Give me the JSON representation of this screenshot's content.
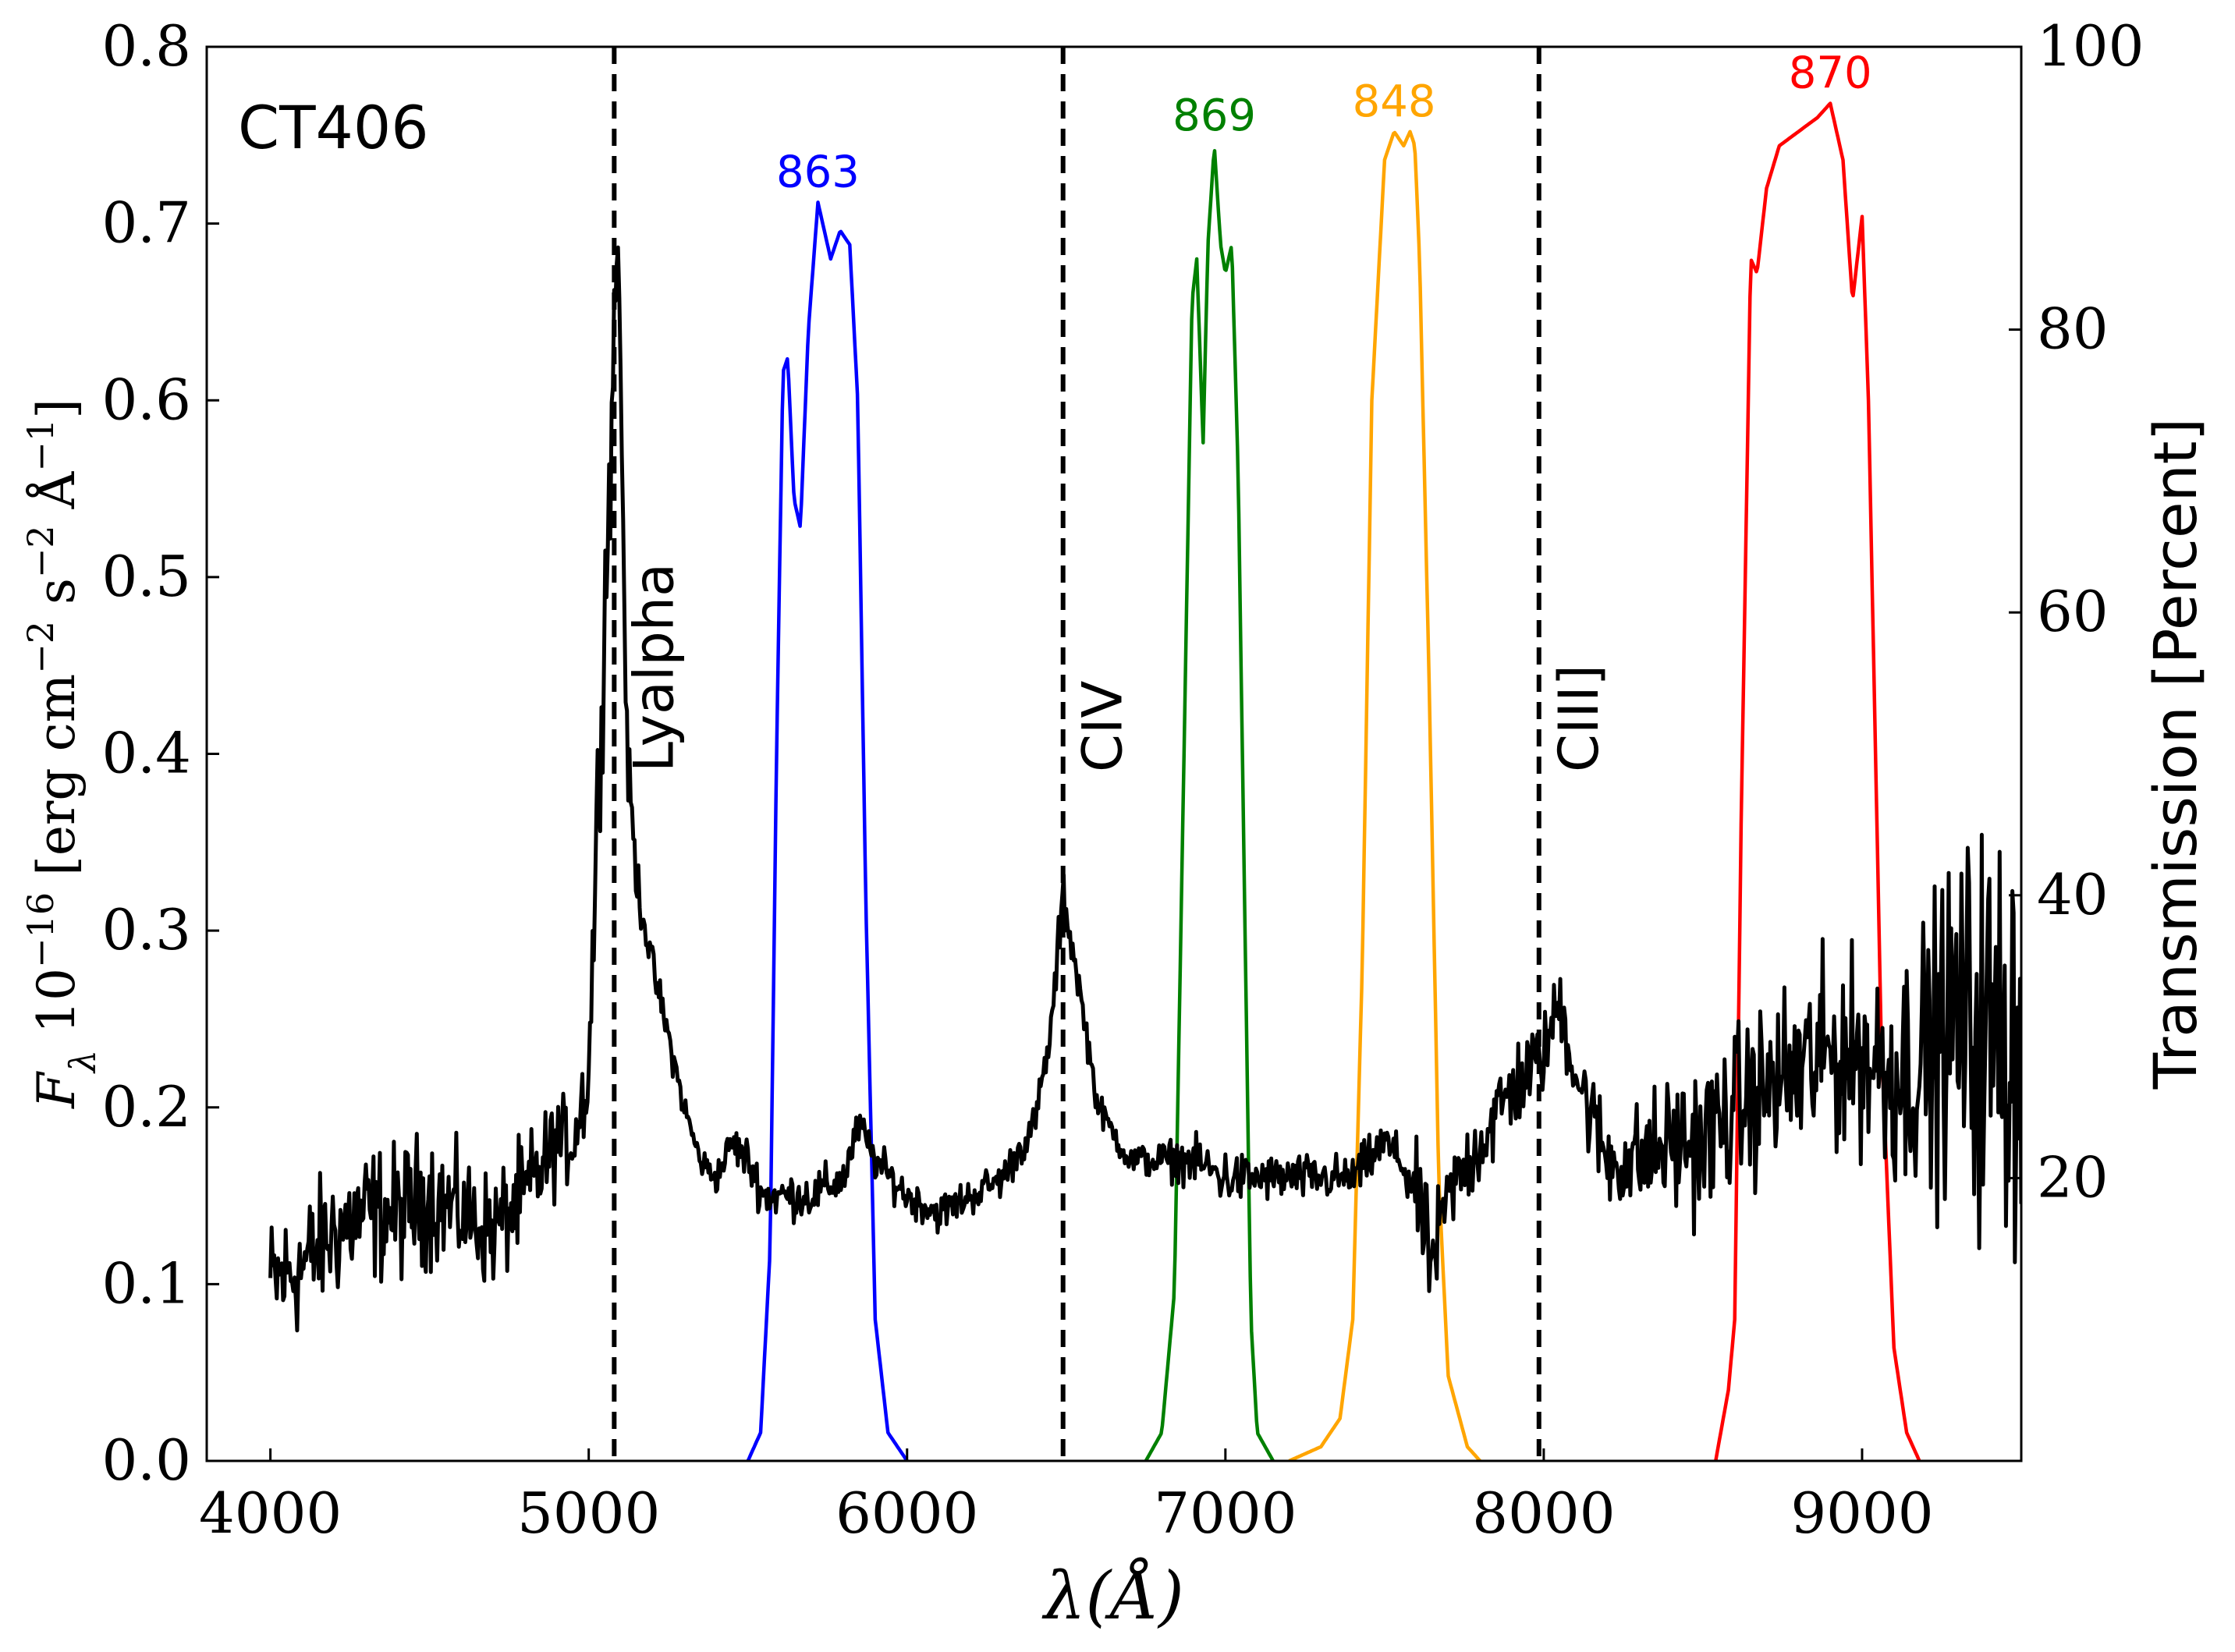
{
  "chart_data": {
    "type": "line",
    "object_label": "CT406",
    "xlabel": "λ(Å)",
    "ylabel_left": "F_λ 10^-16 [erg cm^-2 s^-2 Å^-1]",
    "ylabel_right": "Transmission [Percent]",
    "xlim": [
      3800,
      9500
    ],
    "ylim_left": [
      0.0,
      0.8
    ],
    "ylim_right": [
      0,
      100
    ],
    "x_ticks": [
      4000,
      5000,
      6000,
      7000,
      8000,
      9000
    ],
    "x_tick_labels": [
      "4000",
      "5000",
      "6000",
      "7000",
      "8000",
      "9000"
    ],
    "y_left_ticks": [
      0.0,
      0.1,
      0.2,
      0.3,
      0.4,
      0.5,
      0.6,
      0.7,
      0.8
    ],
    "y_left_tick_labels": [
      "0.0",
      "0.1",
      "0.2",
      "0.3",
      "0.4",
      "0.5",
      "0.6",
      "0.7",
      "0.8"
    ],
    "y_right_ticks": [
      20,
      40,
      60,
      80,
      100
    ],
    "y_right_tick_labels": [
      "20",
      "40",
      "60",
      "80",
      "100"
    ],
    "emission_lines": [
      {
        "name": "Lyalpha",
        "wavelength": 5080
      },
      {
        "name": "CIV",
        "wavelength": 6490
      },
      {
        "name": "CIII]",
        "wavelength": 7985
      }
    ],
    "spectrum": {
      "name": "CT406 spectrum",
      "color": "#000000",
      "x": [
        4000,
        4100,
        4200,
        4300,
        4400,
        4500,
        4600,
        4700,
        4800,
        4900,
        4950,
        5000,
        5030,
        5050,
        5070,
        5090,
        5100,
        5120,
        5150,
        5200,
        5250,
        5300,
        5350,
        5400,
        5450,
        5500,
        5550,
        5600,
        5700,
        5800,
        5850,
        5900,
        6000,
        6100,
        6200,
        6300,
        6400,
        6450,
        6490,
        6530,
        6600,
        6700,
        6800,
        6900,
        7000,
        7100,
        7200,
        7300,
        7400,
        7500,
        7550,
        7600,
        7650,
        7700,
        7800,
        7900,
        8000,
        8050,
        8100,
        8200,
        8300,
        8400,
        8500,
        8600,
        8700,
        8800,
        8900,
        9000,
        9100,
        9200,
        9300,
        9400,
        9500
      ],
      "y": [
        0.1,
        0.11,
        0.13,
        0.14,
        0.14,
        0.15,
        0.14,
        0.13,
        0.15,
        0.18,
        0.18,
        0.22,
        0.38,
        0.48,
        0.58,
        0.7,
        0.62,
        0.4,
        0.33,
        0.28,
        0.24,
        0.2,
        0.17,
        0.16,
        0.18,
        0.17,
        0.15,
        0.15,
        0.15,
        0.16,
        0.19,
        0.17,
        0.15,
        0.14,
        0.15,
        0.16,
        0.19,
        0.24,
        0.32,
        0.28,
        0.2,
        0.17,
        0.17,
        0.17,
        0.16,
        0.16,
        0.16,
        0.16,
        0.16,
        0.18,
        0.17,
        0.15,
        0.11,
        0.15,
        0.18,
        0.21,
        0.23,
        0.26,
        0.22,
        0.17,
        0.17,
        0.18,
        0.18,
        0.2,
        0.21,
        0.22,
        0.23,
        0.23,
        0.22,
        0.23,
        0.25,
        0.24,
        0.24
      ],
      "noise_amplitude": [
        0.035,
        0.035,
        0.035,
        0.035,
        0.035,
        0.035,
        0.03,
        0.03,
        0.03,
        0.025,
        0.02,
        0.03,
        0.04,
        0.04,
        0.04,
        0.02,
        0.02,
        0.02,
        0.015,
        0.01,
        0.01,
        0.008,
        0.008,
        0.008,
        0.01,
        0.012,
        0.012,
        0.012,
        0.012,
        0.012,
        0.01,
        0.01,
        0.01,
        0.01,
        0.01,
        0.01,
        0.01,
        0.01,
        0.015,
        0.01,
        0.008,
        0.008,
        0.01,
        0.012,
        0.015,
        0.012,
        0.012,
        0.012,
        0.012,
        0.012,
        0.012,
        0.025,
        0.03,
        0.02,
        0.025,
        0.025,
        0.02,
        0.02,
        0.025,
        0.025,
        0.03,
        0.035,
        0.04,
        0.04,
        0.045,
        0.05,
        0.05,
        0.05,
        0.06,
        0.07,
        0.09,
        0.11,
        0.11
      ]
    },
    "filters": [
      {
        "name": "863",
        "color": "#0000ff",
        "x": [
          5500,
          5540,
          5570,
          5590,
          5610,
          5625,
          5645,
          5665,
          5690,
          5720,
          5740,
          5760,
          5790,
          5820,
          5845,
          5870,
          5900,
          5940,
          6000
        ],
        "y": [
          0,
          2,
          15,
          50,
          77,
          78,
          68,
          66,
          80,
          89,
          87,
          85,
          87,
          86,
          75,
          40,
          10,
          2,
          0
        ]
      },
      {
        "name": "869",
        "color": "#008000",
        "x": [
          6750,
          6800,
          6840,
          6870,
          6895,
          6910,
          6930,
          6945,
          6965,
          6985,
          7000,
          7020,
          7040,
          7060,
          7080,
          7100,
          7150
        ],
        "y": [
          0,
          2,
          12,
          50,
          82,
          85,
          72,
          86,
          93,
          86,
          84,
          86,
          70,
          40,
          10,
          2,
          0
        ]
      },
      {
        "name": "848",
        "color": "#ffa500",
        "x": [
          7200,
          7300,
          7360,
          7400,
          7430,
          7460,
          7500,
          7530,
          7560,
          7580,
          7595,
          7610,
          7640,
          7670,
          7700,
          7760,
          7800
        ],
        "y": [
          0,
          1,
          3,
          10,
          35,
          75,
          92,
          94,
          93,
          94,
          93,
          85,
          55,
          20,
          6,
          1,
          0
        ]
      },
      {
        "name": "870",
        "color": "#ff0000",
        "x": [
          8540,
          8580,
          8600,
          8620,
          8650,
          8670,
          8700,
          8740,
          8800,
          8860,
          8900,
          8940,
          8970,
          9000,
          9020,
          9060,
          9100,
          9140,
          9180
        ],
        "y": [
          0,
          5,
          10,
          45,
          85,
          84,
          90,
          93,
          94,
          95,
          96,
          92,
          82,
          88,
          75,
          30,
          8,
          2,
          0
        ]
      }
    ]
  }
}
